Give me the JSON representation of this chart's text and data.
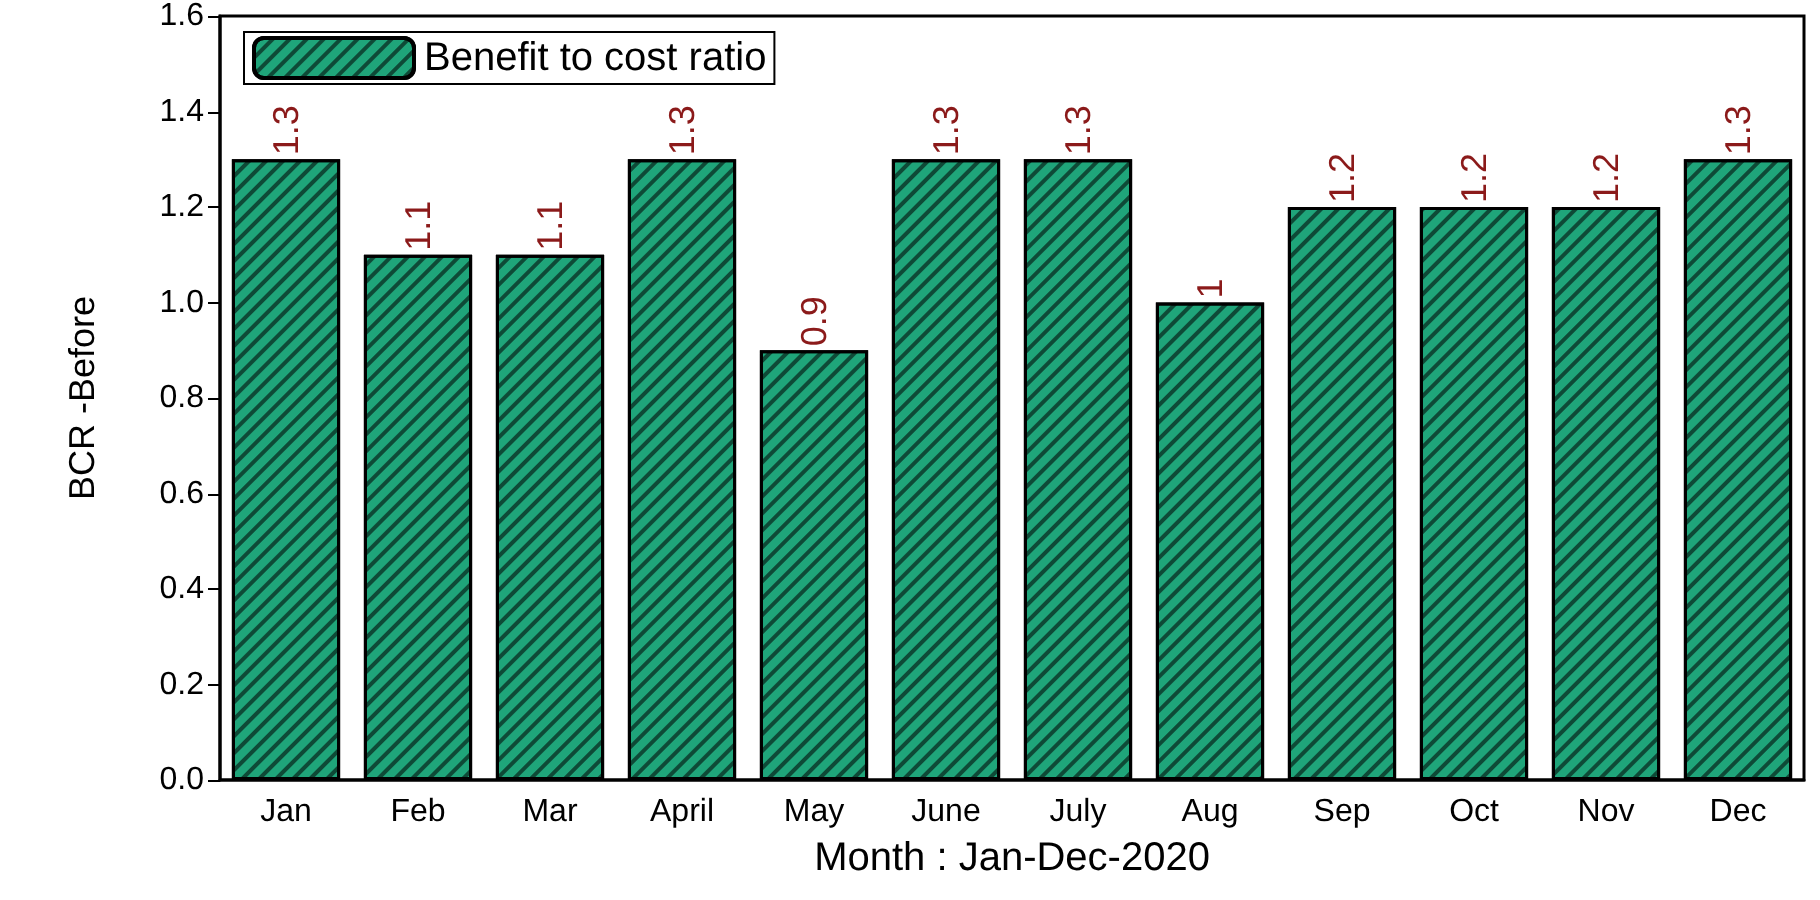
{
  "chart_data": {
    "type": "bar",
    "xlabel": "Month : Jan-Dec-2020",
    "ylabel": "BCR -Before",
    "categories": [
      "Jan",
      "Feb",
      "Mar",
      "April",
      "May",
      "June",
      "July",
      "Aug",
      "Sep",
      "Oct",
      "Nov",
      "Dec"
    ],
    "series": [
      {
        "name": "Benefit to cost ratio",
        "color": "#1fa57a",
        "values": [
          1.3,
          1.1,
          1.1,
          1.3,
          0.9,
          1.3,
          1.3,
          1,
          1.2,
          1.2,
          1.2,
          1.3
        ]
      }
    ],
    "ylim": [
      0,
      1.6
    ],
    "yticks": [
      {
        "value": 0,
        "label": "0.0"
      },
      {
        "value": 0.2,
        "label": "0.2"
      },
      {
        "value": 0.4,
        "label": "0.4"
      },
      {
        "value": 0.6,
        "label": "0.6"
      },
      {
        "value": 0.8,
        "label": "0.8"
      },
      {
        "value": 1,
        "label": "1.0"
      },
      {
        "value": 1.2,
        "label": "1.2"
      },
      {
        "value": 1.4,
        "label": "1.4"
      },
      {
        "value": 1.6,
        "label": "1.6"
      }
    ],
    "data_labels": true,
    "legend": "top left",
    "grid": false
  }
}
